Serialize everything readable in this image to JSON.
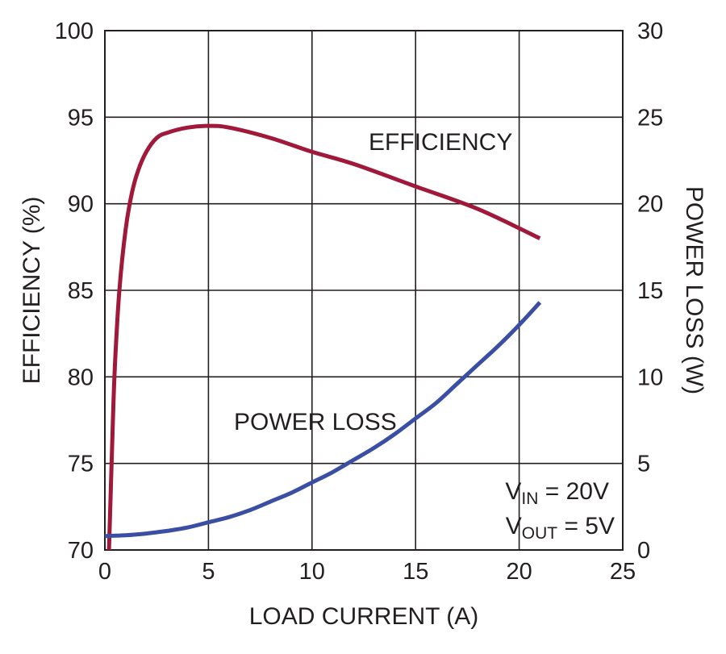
{
  "chart_data": {
    "type": "line",
    "xlabel": "LOAD CURRENT (A)",
    "ylabel_left": "EFFICIENCY (%)",
    "ylabel_right": "POWER LOSS (W)",
    "xlim": [
      0,
      25
    ],
    "ylim_left": [
      70,
      100
    ],
    "ylim_right": [
      0,
      30
    ],
    "x_ticks": [
      "0",
      "5",
      "10",
      "15",
      "20",
      "25"
    ],
    "y_left_ticks": [
      "70",
      "75",
      "80",
      "85",
      "90",
      "95",
      "100"
    ],
    "y_right_ticks": [
      "0",
      "5",
      "10",
      "15",
      "20",
      "25",
      "30"
    ],
    "grid": true,
    "series": [
      {
        "name": "EFFICIENCY",
        "axis": "left",
        "color": "#a0183a",
        "x": [
          0.2,
          0.3,
          0.4,
          0.5,
          0.7,
          1.0,
          1.3,
          1.6,
          2.0,
          2.5,
          3.0,
          4.0,
          5.0,
          6.0,
          8.0,
          10.0,
          12.0,
          15.0,
          18.0,
          21.0
        ],
        "y": [
          70.0,
          74.0,
          78.0,
          81.0,
          85.0,
          88.5,
          90.6,
          91.9,
          93.0,
          93.8,
          94.1,
          94.4,
          94.5,
          94.4,
          93.8,
          93.0,
          92.3,
          91.0,
          89.7,
          88.0
        ]
      },
      {
        "name": "POWER LOSS",
        "axis": "right",
        "color": "#3a4fa3",
        "x": [
          0.0,
          1.0,
          2.0,
          3.0,
          4.0,
          5.0,
          6.0,
          7.0,
          8.0,
          9.0,
          10.0,
          11.0,
          12.0,
          13.0,
          14.0,
          15.0,
          16.0,
          17.0,
          18.0,
          19.0,
          20.0,
          21.0
        ],
        "y": [
          0.8,
          0.85,
          0.95,
          1.1,
          1.3,
          1.6,
          1.9,
          2.3,
          2.8,
          3.3,
          3.9,
          4.5,
          5.2,
          5.9,
          6.7,
          7.6,
          8.5,
          9.6,
          10.7,
          11.8,
          13.0,
          14.3
        ]
      }
    ],
    "annotations": {
      "efficiency_label": "EFFICIENCY",
      "power_loss_label": "POWER LOSS",
      "vin_main": "V",
      "vin_sub": "IN",
      "vin_value": " = 20V",
      "vout_main": "V",
      "vout_sub": "OUT",
      "vout_value": " = 5V"
    }
  }
}
